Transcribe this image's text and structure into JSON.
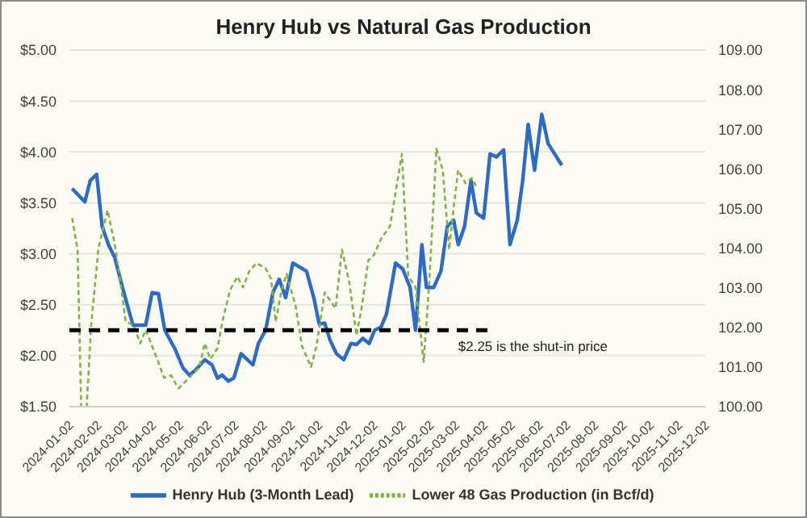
{
  "chart_data": {
    "type": "line",
    "title": "Henry Hub vs Natural Gas Production",
    "xlim": [
      "2024-01-02",
      "2025-12-02"
    ],
    "xticks": [
      "2024-01-02",
      "2024-02-02",
      "2024-03-02",
      "2024-04-02",
      "2024-05-02",
      "2024-06-02",
      "2024-07-02",
      "2024-08-02",
      "2024-09-02",
      "2024-10-02",
      "2024-11-02",
      "2024-12-02",
      "2025-01-02",
      "2025-02-02",
      "2025-03-02",
      "2025-04-02",
      "2025-05-02",
      "2025-06-02",
      "2025-07-02",
      "2025-08-02",
      "2025-09-02",
      "2025-10-02",
      "2025-11-02",
      "2025-12-02"
    ],
    "ylim": [
      1.5,
      5
    ],
    "yticks": [
      {
        "value": 1.5,
        "label": "$1.50"
      },
      {
        "value": 2,
        "label": "$2.00"
      },
      {
        "value": 2.5,
        "label": "$2.50"
      },
      {
        "value": 3,
        "label": "$3.00"
      },
      {
        "value": 3.5,
        "label": "$3.50"
      },
      {
        "value": 4,
        "label": "$4.00"
      },
      {
        "value": 4.5,
        "label": "$4.50"
      },
      {
        "value": 5,
        "label": "$5.00"
      }
    ],
    "y2lim": [
      100,
      109
    ],
    "y2ticks": [
      {
        "value": 100,
        "label": "100.00"
      },
      {
        "value": 101,
        "label": "101.00"
      },
      {
        "value": 102,
        "label": "102.00"
      },
      {
        "value": 103,
        "label": "103.00"
      },
      {
        "value": 104,
        "label": "104.00"
      },
      {
        "value": 105,
        "label": "105.00"
      },
      {
        "value": 106,
        "label": "106.00"
      },
      {
        "value": 107,
        "label": "107.00"
      },
      {
        "value": 108,
        "label": "108.00"
      },
      {
        "value": 109,
        "label": "109.00"
      }
    ],
    "grid": "y",
    "legend": "bottom",
    "series": [
      {
        "name": "Henry Hub (3-Month Lead)",
        "color": "#2e6bc4",
        "line_style": "solid",
        "x": [
          "2024-01-05",
          "2024-01-19",
          "2024-01-25",
          "2024-02-01",
          "2024-02-07",
          "2024-02-14",
          "2024-02-21",
          "2024-02-28",
          "2024-03-06",
          "2024-03-12",
          "2024-03-26",
          "2024-04-02",
          "2024-04-09",
          "2024-04-16",
          "2024-04-27",
          "2024-05-06",
          "2024-05-13",
          "2024-05-20",
          "2024-05-30",
          "2024-06-07",
          "2024-06-13",
          "2024-06-18",
          "2024-06-25",
          "2024-07-01",
          "2024-07-09",
          "2024-07-22",
          "2024-07-28",
          "2024-08-05",
          "2024-08-13",
          "2024-08-20",
          "2024-08-27",
          "2024-09-04",
          "2024-09-19",
          "2024-09-27",
          "2024-10-03",
          "2024-10-09",
          "2024-10-15",
          "2024-10-22",
          "2024-10-30",
          "2024-11-07",
          "2024-11-13",
          "2024-11-20",
          "2024-11-27",
          "2024-12-03",
          "2024-12-10",
          "2024-12-16",
          "2024-12-26",
          "2025-01-03",
          "2025-01-11",
          "2025-01-17",
          "2025-01-24",
          "2025-01-29",
          "2025-02-06",
          "2025-02-14",
          "2025-02-21",
          "2025-02-28",
          "2025-03-05",
          "2025-03-12",
          "2025-03-19",
          "2025-03-25",
          "2025-04-02",
          "2025-04-09",
          "2025-04-16",
          "2025-04-24",
          "2025-05-01",
          "2025-05-09",
          "2025-05-15",
          "2025-05-21",
          "2025-05-28",
          "2025-06-05",
          "2025-06-12",
          "2025-06-27"
        ],
        "values": [
          3.64,
          3.51,
          3.72,
          3.78,
          3.27,
          3.09,
          2.96,
          2.72,
          2.49,
          2.3,
          2.3,
          2.62,
          2.61,
          2.25,
          2.07,
          1.88,
          1.81,
          1.86,
          1.96,
          1.91,
          1.78,
          1.81,
          1.75,
          1.78,
          2.02,
          1.91,
          2.12,
          2.25,
          2.62,
          2.75,
          2.57,
          2.91,
          2.83,
          2.57,
          2.31,
          2.32,
          2.15,
          2.02,
          1.96,
          2.12,
          2.11,
          2.17,
          2.12,
          2.25,
          2.28,
          2.41,
          2.91,
          2.85,
          2.67,
          2.25,
          3.09,
          2.67,
          2.67,
          2.83,
          3.27,
          3.33,
          3.09,
          3.27,
          3.72,
          3.4,
          3.35,
          3.98,
          3.95,
          4.02,
          3.09,
          3.33,
          3.72,
          4.27,
          3.82,
          4.37,
          4.08,
          3.87
        ]
      },
      {
        "name": "Lower 48 Gas Production (in Bcf/d)",
        "axis": "y2",
        "color": "#7fb24a",
        "line_style": "dashed",
        "x": [
          "2024-01-05",
          "2024-01-11",
          "2024-01-15",
          "2024-01-21",
          "2024-01-26",
          "2024-02-03",
          "2024-02-13",
          "2024-02-21",
          "2024-02-28",
          "2024-03-04",
          "2024-03-12",
          "2024-03-20",
          "2024-03-26",
          "2024-04-02",
          "2024-04-10",
          "2024-04-15",
          "2024-04-23",
          "2024-05-01",
          "2024-05-13",
          "2024-05-24",
          "2024-05-30",
          "2024-06-05",
          "2024-06-13",
          "2024-06-19",
          "2024-06-27",
          "2024-07-05",
          "2024-07-11",
          "2024-07-18",
          "2024-07-26",
          "2024-08-05",
          "2024-08-11",
          "2024-08-16",
          "2024-08-22",
          "2024-08-28",
          "2024-09-07",
          "2024-09-14",
          "2024-09-24",
          "2024-09-30",
          "2024-10-09",
          "2024-10-21",
          "2024-10-28",
          "2024-11-05",
          "2024-11-13",
          "2024-11-19",
          "2024-11-26",
          "2024-12-02",
          "2024-12-10",
          "2024-12-20",
          "2025-01-02",
          "2025-01-09",
          "2025-01-17",
          "2025-01-26",
          "2025-02-01",
          "2025-02-09",
          "2025-02-16",
          "2025-02-23",
          "2025-02-28",
          "2025-03-05",
          "2025-03-13",
          "2025-03-20",
          "2025-03-26"
        ],
        "values": [
          104.76,
          103.96,
          100,
          100,
          102.07,
          104,
          104.96,
          104.09,
          103.01,
          102.14,
          102.07,
          101.6,
          101.94,
          101.53,
          101.06,
          100.73,
          100.79,
          100.46,
          100.73,
          101,
          101.6,
          101.2,
          101.47,
          102.21,
          102.95,
          103.28,
          103.01,
          103.42,
          103.62,
          103.49,
          103.22,
          102.14,
          102.88,
          103.35,
          102.54,
          101.53,
          101,
          101.53,
          102.88,
          102.48,
          103.96,
          103.15,
          101.8,
          102.54,
          103.69,
          103.82,
          104.23,
          104.56,
          106.38,
          103.3,
          103.01,
          101.13,
          103.1,
          106.51,
          105.97,
          103.96,
          105.03,
          105.97,
          105.64,
          105.77,
          105.5
        ]
      },
      {
        "color": "#000000",
        "line_style": "dashed",
        "x": [
          "2024-01-02",
          "2025-04-11"
        ],
        "values": [
          2.25,
          2.25
        ]
      }
    ],
    "annotations": [
      {
        "text": "$2.25 is the shut-in price",
        "x": "2025-03-05",
        "y": 2.25
      }
    ]
  }
}
